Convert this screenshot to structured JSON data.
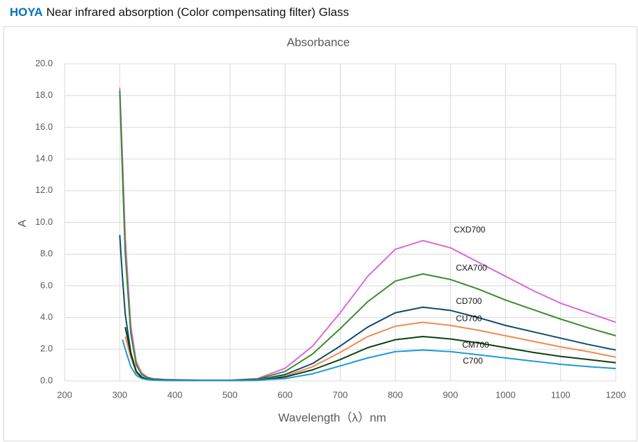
{
  "header": {
    "brand": "HOYA",
    "title": "Near infrared absorption (Color compensating filter) Glass"
  },
  "chart_data": {
    "type": "line",
    "title": "Absorbance",
    "x_label": "Wavelength（λ）nm",
    "y_label": "A",
    "x": [
      300,
      305,
      310,
      320,
      330,
      340,
      350,
      360,
      380,
      400,
      450,
      500,
      550,
      600,
      650,
      700,
      750,
      800,
      850,
      900,
      950,
      1000,
      1050,
      1100,
      1150,
      1200
    ],
    "series": [
      {
        "name": "CXD700",
        "color": "#d86ad8",
        "values": [
          18.5,
          14,
          9,
          3.5,
          1.2,
          0.5,
          0.25,
          0.15,
          0.1,
          0.08,
          0.05,
          0.05,
          0.15,
          0.8,
          2.2,
          4.3,
          6.6,
          8.3,
          8.85,
          8.4,
          7.5,
          6.6,
          5.7,
          4.9,
          4.3,
          3.7
        ]
      },
      {
        "name": "CXA700",
        "color": "#3c8a2e",
        "values": [
          18.3,
          13,
          8,
          3,
          1.0,
          0.4,
          0.2,
          0.12,
          0.08,
          0.06,
          0.04,
          0.04,
          0.12,
          0.6,
          1.7,
          3.3,
          5.0,
          6.3,
          6.75,
          6.4,
          5.8,
          5.1,
          4.5,
          3.9,
          3.35,
          2.85
        ]
      },
      {
        "name": "CD700",
        "color": "#0e4a6e",
        "values": [
          9.2,
          6.5,
          4.2,
          1.8,
          0.6,
          0.25,
          0.12,
          0.08,
          0.05,
          0.04,
          0.03,
          0.03,
          0.08,
          0.4,
          1.1,
          2.2,
          3.4,
          4.3,
          4.65,
          4.45,
          4.0,
          3.5,
          3.1,
          2.7,
          2.3,
          1.95
        ]
      },
      {
        "name": "CU700",
        "color": "#f08a50",
        "values": [
          null,
          null,
          2.8,
          1.5,
          0.5,
          0.2,
          0.1,
          0.06,
          0.04,
          0.03,
          0.02,
          0.02,
          0.06,
          0.3,
          0.9,
          1.8,
          2.8,
          3.45,
          3.7,
          3.5,
          3.2,
          2.85,
          2.5,
          2.15,
          1.85,
          1.5
        ]
      },
      {
        "name": "CM700",
        "color": "#0d3d12",
        "values": [
          null,
          null,
          3.4,
          1.7,
          0.6,
          0.2,
          0.1,
          0.06,
          0.04,
          0.03,
          0.02,
          0.02,
          0.05,
          0.25,
          0.7,
          1.35,
          2.1,
          2.6,
          2.8,
          2.65,
          2.4,
          2.1,
          1.8,
          1.55,
          1.35,
          1.15
        ]
      },
      {
        "name": "C700",
        "color": "#1a9ad6",
        "values": [
          null,
          2.6,
          2.0,
          0.9,
          0.35,
          0.15,
          0.08,
          0.05,
          0.03,
          0.02,
          0.02,
          0.02,
          0.04,
          0.15,
          0.45,
          0.95,
          1.45,
          1.85,
          1.95,
          1.85,
          1.65,
          1.45,
          1.25,
          1.05,
          0.9,
          0.78
        ]
      }
    ],
    "xlim": [
      200,
      1200
    ],
    "xticks": [
      200,
      300,
      400,
      500,
      600,
      700,
      800,
      900,
      1000,
      1100,
      1200
    ],
    "ylim": [
      0,
      20
    ],
    "yticks": [
      {
        "value": 0,
        "label": "0.0"
      },
      {
        "value": 2,
        "label": "2.0"
      },
      {
        "value": 4,
        "label": "4.0"
      },
      {
        "value": 6,
        "label": "6.0"
      },
      {
        "value": 8,
        "label": "8.0"
      },
      {
        "value": 10,
        "label": "10.0"
      },
      {
        "value": 12,
        "label": "12.0"
      },
      {
        "value": 14,
        "label": "14.0"
      },
      {
        "value": 16,
        "label": "16.0"
      },
      {
        "value": 18,
        "label": "18.0"
      },
      {
        "value": 20,
        "label": "20.0"
      }
    ],
    "grid": true
  }
}
